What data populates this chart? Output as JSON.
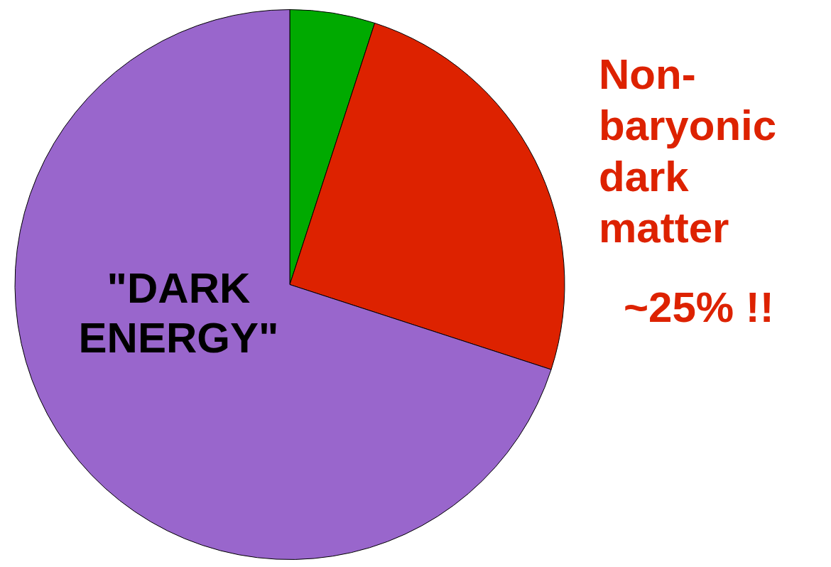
{
  "chart_data": {
    "type": "pie",
    "categories": [
      null,
      "Non-baryonic dark matter",
      "\"DARK ENERGY\""
    ],
    "values": [
      5,
      25,
      70
    ],
    "colors": [
      "#00aa00",
      "#dd2200",
      "#9966cc"
    ],
    "annotations": [
      "~25% !!"
    ],
    "legend": false
  }
}
